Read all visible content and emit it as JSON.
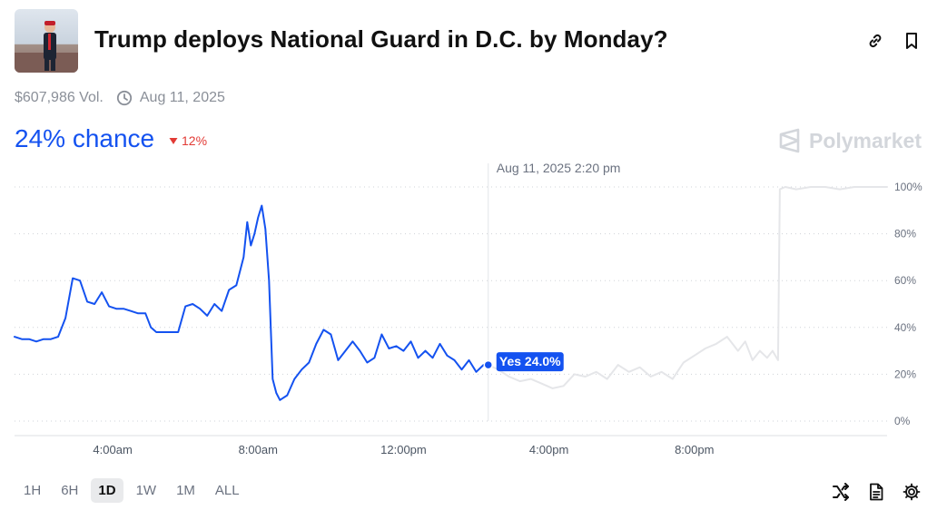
{
  "header": {
    "title": "Trump deploys National Guard in D.C. by Monday?",
    "thumbnail_icon": "market-thumbnail-photo",
    "link_icon": "link-icon",
    "bookmark_icon": "bookmark-icon"
  },
  "meta": {
    "volume": "$607,986 Vol.",
    "date": "Aug 11, 2025"
  },
  "odds": {
    "chance": "24% chance",
    "delta": "12%",
    "delta_direction": "down",
    "accent_color": "#1452f0",
    "down_color": "#e23a35"
  },
  "brand": {
    "name": "Polymarket"
  },
  "chart_data": {
    "type": "line",
    "x_unit": "hours since 12:00am, Aug 11 2025",
    "ylim": [
      0,
      100
    ],
    "xlim": [
      1.3,
      25.3
    ],
    "ytick_labels": [
      "100%",
      "80%",
      "60%",
      "40%",
      "20%",
      "0%"
    ],
    "ytick_values": [
      100,
      80,
      60,
      40,
      20,
      0
    ],
    "xtick_labels": [
      "4:00am",
      "8:00am",
      "12:00pm",
      "4:00pm",
      "8:00pm"
    ],
    "xtick_values": [
      4,
      8,
      12,
      16,
      20
    ],
    "grid": true,
    "hover": {
      "time_label": "Aug 11, 2025 2:20 pm",
      "x": 14.33,
      "value": 24.0,
      "tooltip": "Yes 24.0%"
    },
    "series": [
      {
        "name": "Yes",
        "color": "#1452f0",
        "x": [
          1.3,
          1.5,
          1.7,
          1.9,
          2.1,
          2.3,
          2.5,
          2.7,
          2.9,
          3.1,
          3.3,
          3.5,
          3.7,
          3.9,
          4.1,
          4.3,
          4.5,
          4.7,
          4.9,
          5.05,
          5.2,
          5.4,
          5.6,
          5.8,
          6.0,
          6.2,
          6.4,
          6.6,
          6.8,
          7.0,
          7.2,
          7.4,
          7.6,
          7.7,
          7.8,
          7.9,
          8.0,
          8.1,
          8.2,
          8.3,
          8.4,
          8.5,
          8.6,
          8.8,
          9.0,
          9.2,
          9.4,
          9.6,
          9.8,
          10.0,
          10.2,
          10.4,
          10.6,
          10.8,
          11.0,
          11.2,
          11.4,
          11.6,
          11.8,
          12.0,
          12.2,
          12.4,
          12.6,
          12.8,
          13.0,
          13.2,
          13.4,
          13.6,
          13.8,
          14.0,
          14.2,
          14.33
        ],
        "y": [
          36,
          35,
          35,
          34,
          35,
          35,
          36,
          44,
          61,
          60,
          51,
          50,
          55,
          49,
          48,
          48,
          47,
          46,
          46,
          40,
          38,
          38,
          38,
          38,
          49,
          50,
          48,
          45,
          50,
          47,
          56,
          58,
          70,
          85,
          75,
          80,
          87,
          92,
          82,
          60,
          18,
          12,
          9,
          11,
          18,
          22,
          25,
          33,
          39,
          37,
          26,
          30,
          34,
          30,
          25,
          27,
          37,
          31,
          32,
          30,
          34,
          27,
          30,
          27,
          33,
          28,
          26,
          22,
          26,
          21,
          24,
          24
        ]
      },
      {
        "name": "forward",
        "color": "#e5e6e9",
        "x": [
          14.33,
          14.6,
          14.9,
          15.2,
          15.5,
          15.8,
          16.1,
          16.4,
          16.7,
          17.0,
          17.3,
          17.6,
          17.9,
          18.2,
          18.5,
          18.8,
          19.1,
          19.4,
          19.7,
          20.0,
          20.3,
          20.6,
          20.9,
          21.2,
          21.4,
          21.6,
          21.8,
          22.0,
          22.15,
          22.3,
          22.35,
          22.5,
          22.8,
          23.2,
          23.6,
          24.0,
          24.4,
          24.8,
          25.3
        ],
        "y": [
          24,
          22,
          19,
          17,
          18,
          16,
          14,
          15,
          20,
          19,
          21,
          18,
          24,
          21,
          23,
          19,
          21,
          18,
          25,
          28,
          31,
          33,
          36,
          30,
          34,
          26,
          30,
          27,
          30,
          26,
          99,
          100,
          99,
          100,
          100,
          99,
          100,
          100,
          100
        ]
      }
    ]
  },
  "ranges": {
    "items": [
      "1H",
      "6H",
      "1D",
      "1W",
      "1M",
      "ALL"
    ],
    "active": "1D"
  },
  "tools": {
    "icons": [
      "shuffle-icon",
      "document-icon",
      "settings-gear-icon"
    ]
  }
}
